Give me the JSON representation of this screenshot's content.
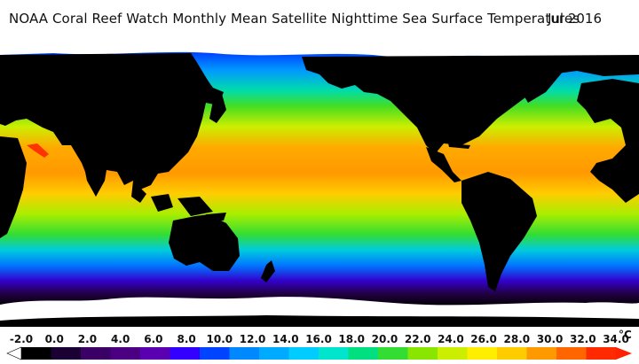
{
  "header": {
    "title": "NOAA Coral Reef Watch Monthly Mean Satellite Nighttime Sea Surface Temperatures",
    "date": "Jul 2016"
  },
  "map": {
    "projection": "equirectangular, Pacific-centered",
    "land_color": "#000000",
    "ice_color": "#ffffff"
  },
  "legend": {
    "unit": "°C",
    "ticks": [
      "-2.0",
      "0.0",
      "2.0",
      "4.0",
      "6.0",
      "8.0",
      "10.0",
      "12.0",
      "14.0",
      "16.0",
      "18.0",
      "20.0",
      "22.0",
      "24.0",
      "26.0",
      "28.0",
      "30.0",
      "32.0",
      "34.0"
    ],
    "colors": [
      "#000000",
      "#1a0033",
      "#3b0066",
      "#4b0082",
      "#5a00b0",
      "#3300ff",
      "#0044ff",
      "#0088ff",
      "#00aaff",
      "#00ccff",
      "#00e5cc",
      "#00e080",
      "#33dd33",
      "#88e600",
      "#ccee00",
      "#ffee00",
      "#ffcc00",
      "#ff9900",
      "#ff6600",
      "#ff2a00"
    ]
  }
}
